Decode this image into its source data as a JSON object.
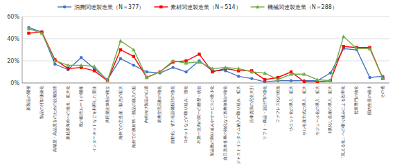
{
  "chart_data": {
    "type": "line",
    "categories": [
      "新製品の開発",
      "製品の付加価値化",
      "高精度・高品質をのための設備投賄",
      "新起業海外への進出、拡大化",
      "既の販売ルートの開拓",
      "インターネットなどを利用した受注",
      "共同発注体制の確立",
      "海外での主生産・販売の拡大",
      "海外での原材料・部品の購入の拡",
      "内外向け製品の山遣",
      "業務交流活動の強化",
      "自動化・省力化設備投賄の強化",
      "ロボットなどの取り組み、強化",
      "不第一次内の関一の整理・統合",
      "製品数の割り辿みやサービスの噯小化",
      "自己資本仕事の強化など奥務体制の強化",
      "ジャストインタイム納入の取り組み、拡大",
      "活体資源の完全大別",
      "ソフト・商品・設計門の強化",
      "ファブレス化の推進",
      "小ロット化の導入、拡大",
      "セル生産方式の導入、拡大",
      "モジュール化の導入、拡大",
      "1倶化し生産の導入、拡大",
      "「見える化」への取り組みによる効率化",
      "営業専門の強化",
      "国内生産の縮小",
      "その他"
    ],
    "series": [
      {
        "name": "消費関連製造業（N＝377）",
        "color": "#4472C4",
        "marker": "circle",
        "values": [
          50,
          46,
          17,
          12,
          23,
          13,
          3,
          22,
          16,
          10,
          9,
          14,
          10,
          20,
          11,
          11,
          6,
          4,
          1,
          2,
          2,
          2,
          2,
          9,
          31,
          30,
          5,
          6
        ]
      },
      {
        "name": "素材関連製造業（N＝514）",
        "color": "#FF0000",
        "marker": "square",
        "values": [
          45,
          46,
          21,
          13,
          14,
          11,
          2,
          30,
          24,
          5,
          10,
          19,
          20,
          26,
          10,
          13,
          11,
          11,
          3,
          5,
          10,
          1,
          1,
          2,
          33,
          32,
          32,
          4
        ]
      },
      {
        "name": "機械関連製造業（N＝288）",
        "color": "#70AD47",
        "marker": "triangle",
        "values": [
          49,
          45,
          20,
          16,
          16,
          15,
          2,
          38,
          30,
          5,
          10,
          20,
          18,
          19,
          13,
          14,
          13,
          10,
          9,
          3,
          8,
          8,
          3,
          2,
          42,
          31,
          31,
          4
        ]
      }
    ],
    "ylim": [
      0,
      60
    ],
    "yticks": [
      {
        "value": 0,
        "label": "0%"
      },
      {
        "value": 20,
        "label": "20%"
      },
      {
        "value": 40,
        "label": "40%"
      },
      {
        "value": 60,
        "label": "60%"
      }
    ],
    "grid": true,
    "legend": "top"
  }
}
